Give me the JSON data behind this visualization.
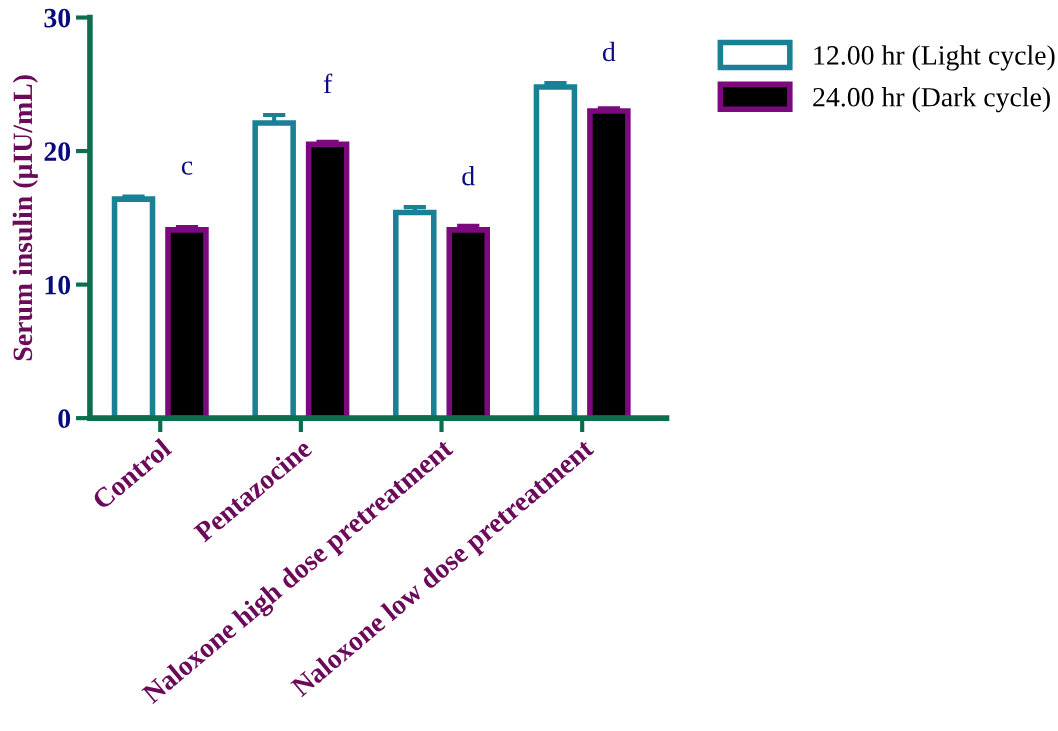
{
  "chart_data": {
    "type": "bar",
    "ylabel": "Serum insulin (µIU/mL)",
    "categories": [
      "Control",
      "Pentazocine",
      "Naloxone high dose pretreatment",
      "Naloxone low dose pretreatment"
    ],
    "series": [
      {
        "name": "12.00 hr (Light cycle)",
        "color": "#1a8096",
        "values": [
          16.4,
          22.1,
          15.4,
          24.8
        ],
        "errors": [
          0.2,
          0.6,
          0.4,
          0.3
        ]
      },
      {
        "name": "24.00 hr (Dark cycle)",
        "color": "#7b0a7e",
        "values": [
          14.1,
          20.5,
          14.1,
          23.0
        ],
        "errors": [
          0.2,
          0.2,
          0.3,
          0.2
        ]
      }
    ],
    "ylim": [
      0,
      30
    ],
    "yticks": [
      0,
      10,
      20,
      30
    ],
    "legend": "top right",
    "grid": false,
    "annotations": [
      "c",
      "f",
      "d",
      "d"
    ]
  }
}
